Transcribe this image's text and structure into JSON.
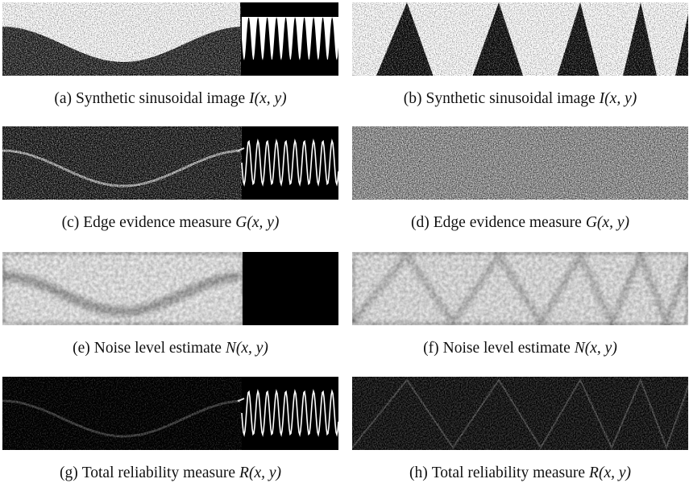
{
  "panels": [
    {
      "label": "(a)",
      "caption": "Synthetic sinusoidal image",
      "math": "I(x, y)"
    },
    {
      "label": "(b)",
      "caption": "Synthetic sinusoidal image",
      "math": "I(x, y)"
    },
    {
      "label": "(c)",
      "caption": "Edge evidence measure",
      "math": "G(x, y)"
    },
    {
      "label": "(d)",
      "caption": "Edge evidence measure",
      "math": "G(x, y)"
    },
    {
      "label": "(e)",
      "caption": "Noise level estimate",
      "math": "N(x, y)"
    },
    {
      "label": "(f)",
      "caption": "Noise level estimate",
      "math": "N(x, y)"
    },
    {
      "label": "(g)",
      "caption": "Total reliability measure",
      "math": "R(x, y)"
    },
    {
      "label": "(h)",
      "caption": "Total reliability measure",
      "math": "R(x, y)"
    }
  ]
}
